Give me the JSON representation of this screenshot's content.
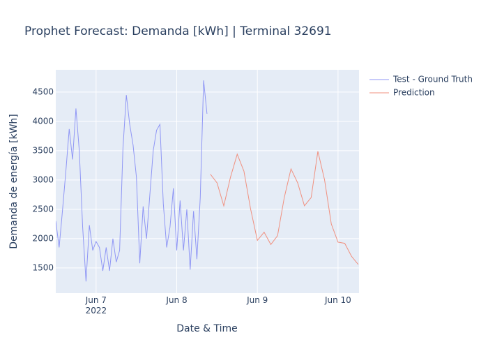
{
  "chart_data": {
    "type": "line",
    "title": "Prophet Forecast: Demanda [kWh] | Terminal 32691",
    "x_label": "Date & Time",
    "y_label": "Demanda de energía [kWh]",
    "xlim": [
      "2022-06-06T12:00",
      "2022-06-10T06:15"
    ],
    "xticks": [
      {
        "value": "2022-06-07T00:00",
        "label": "Jun 7\n2022"
      },
      {
        "value": "2022-06-08T00:00",
        "label": "Jun 8"
      },
      {
        "value": "2022-06-09T00:00",
        "label": "Jun 9"
      },
      {
        "value": "2022-06-10T00:00",
        "label": "Jun 10"
      }
    ],
    "ylim": [
      1070,
      4880
    ],
    "yticks": [
      1500,
      2000,
      2500,
      3000,
      3500,
      4000,
      4500
    ],
    "grid": true,
    "legend": "right",
    "series": [
      {
        "name": "Test - Ground Truth",
        "color": "#8f96f5",
        "x": [
          "2022-06-06T12:00",
          "2022-06-06T13:00",
          "2022-06-06T14:00",
          "2022-06-06T15:00",
          "2022-06-06T16:00",
          "2022-06-06T17:00",
          "2022-06-06T18:00",
          "2022-06-06T19:00",
          "2022-06-06T20:00",
          "2022-06-06T21:00",
          "2022-06-06T22:00",
          "2022-06-06T23:00",
          "2022-06-07T00:00",
          "2022-06-07T01:00",
          "2022-06-07T02:00",
          "2022-06-07T03:00",
          "2022-06-07T04:00",
          "2022-06-07T05:00",
          "2022-06-07T06:00",
          "2022-06-07T07:00",
          "2022-06-07T08:00",
          "2022-06-07T09:00",
          "2022-06-07T10:00",
          "2022-06-07T11:00",
          "2022-06-07T12:00",
          "2022-06-07T13:00",
          "2022-06-07T14:00",
          "2022-06-07T15:00",
          "2022-06-07T16:00",
          "2022-06-07T17:00",
          "2022-06-07T18:00",
          "2022-06-07T19:00",
          "2022-06-07T20:00",
          "2022-06-07T21:00",
          "2022-06-07T22:00",
          "2022-06-07T23:00",
          "2022-06-08T00:00",
          "2022-06-08T01:00",
          "2022-06-08T02:00",
          "2022-06-08T03:00",
          "2022-06-08T04:00",
          "2022-06-08T05:00",
          "2022-06-08T06:00",
          "2022-06-08T07:00",
          "2022-06-08T08:00",
          "2022-06-08T09:00"
        ],
        "values": [
          2300,
          1850,
          2480,
          3150,
          3870,
          3350,
          4220,
          3500,
          2200,
          1270,
          2230,
          1800,
          1950,
          1850,
          1450,
          1850,
          1450,
          2000,
          1600,
          1800,
          3550,
          4450,
          3950,
          3600,
          3050,
          1580,
          2550,
          2000,
          2750,
          3500,
          3850,
          3950,
          2600,
          1850,
          2200,
          2860,
          1800,
          2650,
          1800,
          2500,
          1470,
          2470,
          1650,
          2700,
          4700,
          4130
        ]
      },
      {
        "name": "Prediction",
        "color": "#f0907f",
        "x": [
          "2022-06-08T10:00",
          "2022-06-08T12:00",
          "2022-06-08T14:00",
          "2022-06-08T16:00",
          "2022-06-08T18:00",
          "2022-06-08T20:00",
          "2022-06-08T22:00",
          "2022-06-09T00:00",
          "2022-06-09T02:00",
          "2022-06-09T04:00",
          "2022-06-09T06:00",
          "2022-06-09T08:00",
          "2022-06-09T10:00",
          "2022-06-09T12:00",
          "2022-06-09T14:00",
          "2022-06-09T16:00",
          "2022-06-09T18:00",
          "2022-06-09T20:00",
          "2022-06-09T22:00",
          "2022-06-10T00:00",
          "2022-06-10T02:00",
          "2022-06-10T04:00",
          "2022-06-10T06:00"
        ],
        "values": [
          3100,
          2950,
          2560,
          3050,
          3440,
          3150,
          2500,
          1970,
          2110,
          1900,
          2050,
          2700,
          3190,
          2950,
          2560,
          2700,
          3490,
          3000,
          2250,
          1940,
          1920,
          1700,
          1560
        ]
      }
    ]
  }
}
